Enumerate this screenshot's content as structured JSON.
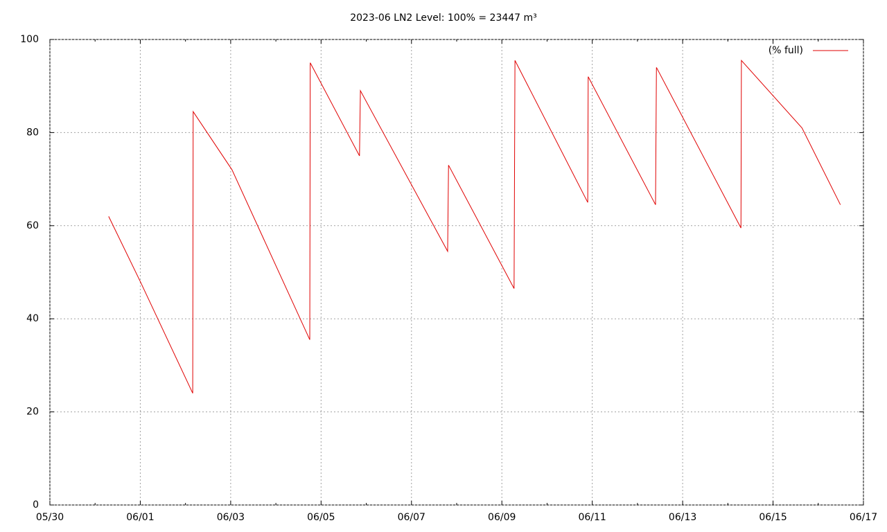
{
  "chart_data": {
    "type": "line",
    "title": "2023-06 LN2 Level: 100% = 23447 m³",
    "x": [
      1.3,
      2.0,
      3.16,
      3.17,
      4.03,
      5.75,
      5.76,
      6.85,
      6.87,
      8.8,
      8.82,
      10.27,
      10.29,
      11.9,
      11.91,
      13.4,
      13.42,
      15.29,
      15.3,
      16.64,
      17.49
    ],
    "series": [
      {
        "name": "(% full)",
        "color": "#e00000",
        "values": [
          62,
          48,
          24,
          84.5,
          72,
          35.5,
          95,
          75,
          89,
          54.5,
          73,
          46.5,
          95.5,
          65,
          92,
          64.5,
          94,
          59.5,
          95.5,
          81,
          64.5
        ]
      }
    ],
    "xlim": [
      0,
      18
    ],
    "xticks": [
      {
        "value": 0,
        "label": "05/30"
      },
      {
        "value": 2,
        "label": "06/01"
      },
      {
        "value": 4,
        "label": "06/03"
      },
      {
        "value": 6,
        "label": "06/05"
      },
      {
        "value": 8,
        "label": "06/07"
      },
      {
        "value": 10,
        "label": "06/09"
      },
      {
        "value": 12,
        "label": "06/11"
      },
      {
        "value": 14,
        "label": "06/13"
      },
      {
        "value": 16,
        "label": "06/15"
      },
      {
        "value": 18,
        "label": "06/17"
      }
    ],
    "ylim": [
      0,
      100
    ],
    "yticks": [
      0,
      20,
      40,
      60,
      80,
      100
    ],
    "grid": true,
    "legend": "top-right"
  }
}
